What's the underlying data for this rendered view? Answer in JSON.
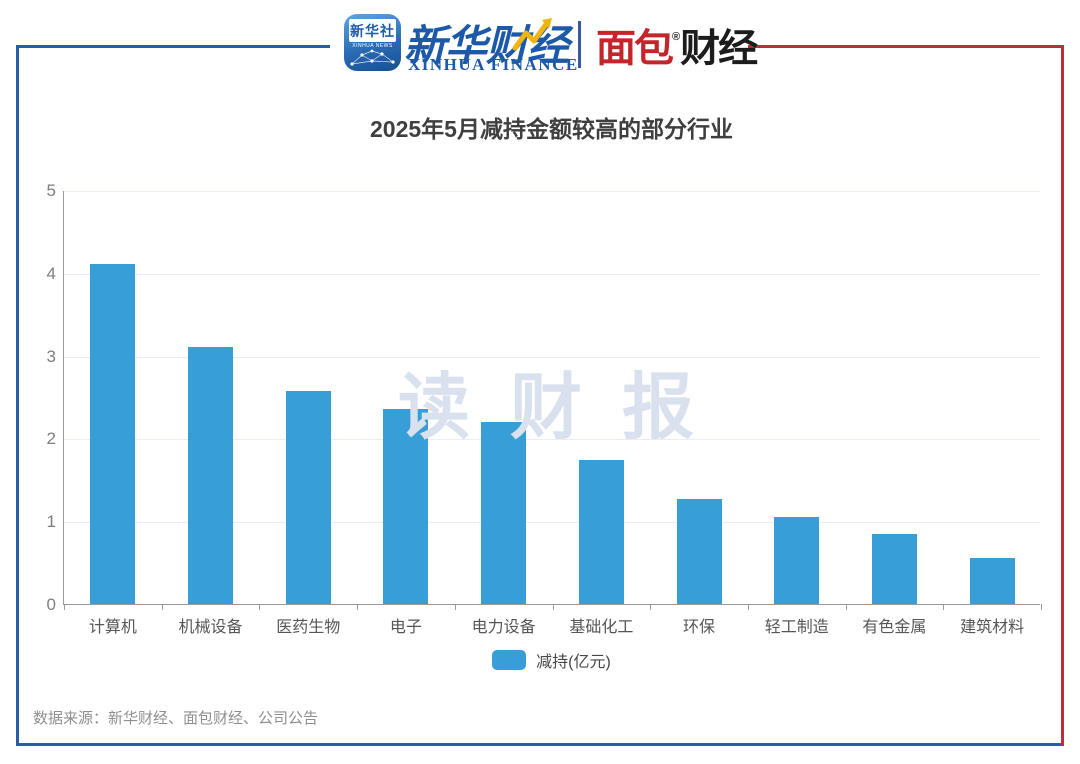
{
  "header": {
    "app_icon": {
      "title": "新华社",
      "subtitle": "XINHUA NEWS"
    },
    "xinhua_finance": {
      "name": "新华财经",
      "caption": "XINHUA FINANCE"
    },
    "bread_finance": {
      "red_part": "面包",
      "black_part": "财经",
      "reg": "®"
    }
  },
  "chart_data": {
    "type": "bar",
    "title": "2025年5月减持金额较高的部分行业",
    "categories": [
      "计算机",
      "机械设备",
      "医药生物",
      "电子",
      "电力设备",
      "基础化工",
      "环保",
      "轻工制造",
      "有色金属",
      "建筑材料"
    ],
    "values": [
      4.11,
      3.11,
      2.57,
      2.35,
      2.2,
      1.74,
      1.27,
      1.05,
      0.84,
      0.55
    ],
    "series_name": "减持(亿元)",
    "xlabel": "",
    "ylabel": "",
    "ylim": [
      0,
      5
    ],
    "yticks": [
      0,
      1,
      2,
      3,
      4,
      5
    ],
    "grid": true,
    "legend_position": "bottom",
    "bar_color": "#379ed7"
  },
  "watermark": "读 财 报",
  "footer": {
    "source": "数据来源：新华财经、面包财经、公司公告"
  },
  "colors": {
    "bar_blue": "#379ed7",
    "frame_blue": "#2b5ca8",
    "frame_red": "#c02d33",
    "gridline": "#e9eef6",
    "axis_gray": "#9a9a9a",
    "title_text": "#3f3f3f",
    "watermark_text": "#d9e1ee",
    "logo_blue": "#1c59a8",
    "logo_red": "#c3252b"
  }
}
